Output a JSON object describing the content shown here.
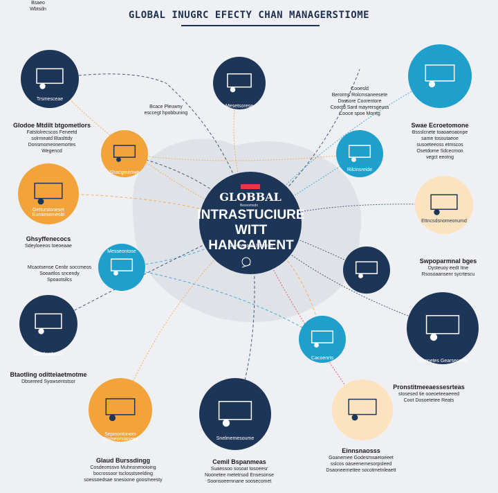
{
  "header": {
    "title": "GLOBAL INUGRC EFECTY CHAN MANAGERSTIOME"
  },
  "center": {
    "line1": "GLOBBAL",
    "line2": "INTRASTUCIURE",
    "line3": "WITT HANGAMENT",
    "subtitle": "Sepsensane hscerelr",
    "badge": "Bessomsdo"
  },
  "nodes": [
    {
      "caption": "Trsmesceae",
      "heading": "Glodoe Mtdilt btgometlors",
      "text": "Fatstolrecscos Feneetd\nsolrmeatd Btaslttdy\nDonsmomeonemortes\nWegencd",
      "color": "#1d3557"
    },
    {
      "caption": "",
      "heading": "",
      "text": "Bcace Pleuwny\nesccegt hpobbuning",
      "color": "none"
    },
    {
      "caption": "Mesetsorese",
      "heading": "",
      "text": "",
      "color": "#1d3557"
    },
    {
      "caption": "",
      "heading": "",
      "text": "Cooesld\nBerorms Rolcmsaneesete\nDnssore Coorentore\nCooctd Sard mayrersgeuss\nCooce spoe Morrtg",
      "color": "none"
    },
    {
      "caption": "",
      "heading": "Swae Ecroetomone",
      "text": "Bssslcnete toaoaeoaonpe\nsame tosoutaeoe\nsusoeteeoss etmscos\nOsetdome Sdcecmon\nvegct eeotng",
      "color": "#1f9fcc"
    },
    {
      "caption": "Shacgmenwe",
      "heading": "",
      "text": "",
      "color": "#f2a33a"
    },
    {
      "caption": "Rilcinsreide",
      "heading": "",
      "text": "",
      "color": "#1f9fcc"
    },
    {
      "caption": "Getturstoneset Eumtesemesbt",
      "heading": "Ghsyffenecocs",
      "text": "Sdeyloeeos toeoeaae",
      "color": "#f2a33a"
    },
    {
      "caption": "Ettncsdsnomeonumd",
      "heading": "",
      "text": "Bsaeo\nWbtsdn",
      "color": "#fbe3c0"
    },
    {
      "caption": "Messeontose",
      "heading": "",
      "text": "Mcaotsense Cenbr soccmeos\nSooartlos sncendy\nSpoaotsilcs",
      "color": "#1f9fcc"
    },
    {
      "caption": "",
      "heading": "Swpoparmnal bges",
      "text": "Dysteuoy eedt Itne\nRsosoaansenr sycrtescu",
      "color": "#1d3557"
    },
    {
      "caption": "Dinetwatunos",
      "heading": "Btaotling oditteiaetmotme",
      "text": "Dbsereed Syowsentstsor",
      "color": "#1d3557"
    },
    {
      "caption": "Gconetes Gearsecanb",
      "heading": "Pronstitmeeaessesrteas",
      "text": "stosesed tie ooeoeteeaeeed\nCoot Dosoetetee Reats",
      "color": "#1d3557"
    },
    {
      "caption": "Cacoenrts",
      "heading": "",
      "text": "",
      "color": "#1f9fcc"
    },
    {
      "caption": "Sepmontonem\nDismeorstaness",
      "heading": "Glaud Burssdingg",
      "text": "Cosdecessvo Muhnsnenoioing\nbocrossoor tsclosstseelding\nsoessoedsae snesoone goosmeesty",
      "color": "#f2a33a"
    },
    {
      "caption": "Snelmemesoume",
      "heading": "Cemil Bspanmeas",
      "text": "Suaessoo sosoat tosoeesr\nNoonetee metetrsod Ensesonse\nSoonsoeemnane soosecomet",
      "color": "#1d3557"
    },
    {
      "caption": "",
      "heading": "Einnsnaosss",
      "text": "Goanemee Godesmsaetoeeet\nsslcos oaseenemesorpsleed\nDsaoneernettee socotmetnleaett",
      "color": "#fbe3c0"
    }
  ]
}
